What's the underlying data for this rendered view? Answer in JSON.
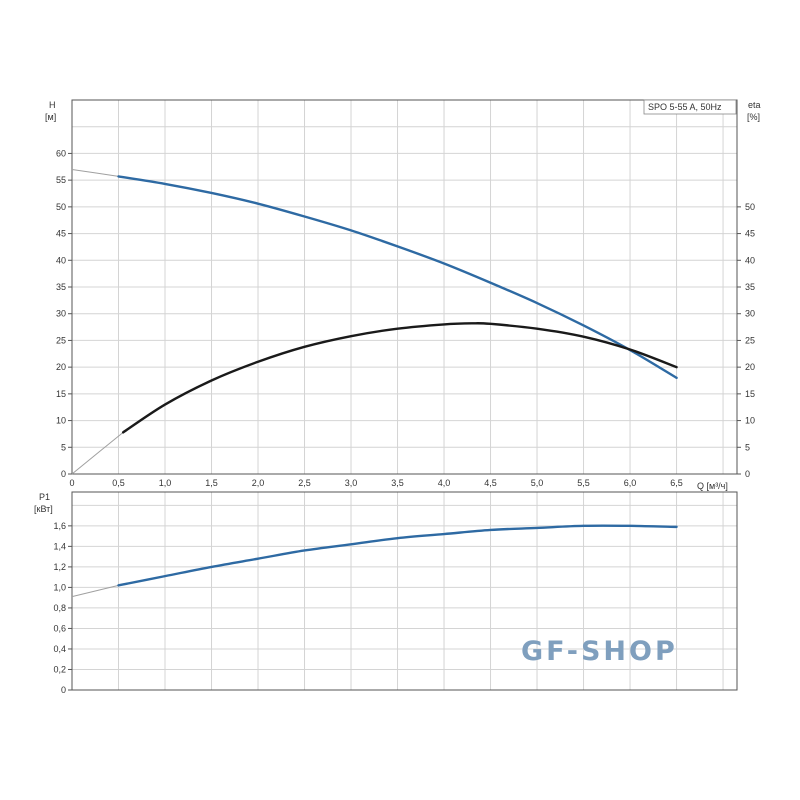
{
  "chart_data": [
    {
      "type": "line",
      "panel": "top",
      "legend_box": "SPO 5-55 A, 50Hz",
      "legend_placement": "top-right",
      "xlabel": "Q [м³/ч]",
      "ylabel": "H",
      "ylabel_unit": "[м]",
      "y2label": "eta",
      "y2label_unit": "[%]",
      "xlim": [
        0,
        7.15
      ],
      "ylim": [
        0,
        70
      ],
      "y2lim": [
        0,
        70
      ],
      "grid": true,
      "x_ticks": [
        "0",
        "0,5",
        "1,0",
        "1,5",
        "2,0",
        "2,5",
        "3,0",
        "3,5",
        "4,0",
        "4,5",
        "5,0",
        "5,5",
        "6,0",
        "6,5"
      ],
      "y_ticks": [
        "0",
        "5",
        "10",
        "15",
        "20",
        "25",
        "30",
        "35",
        "40",
        "45",
        "50",
        "55",
        "60"
      ],
      "y2_ticks": [
        "0",
        "5",
        "10",
        "15",
        "20",
        "25",
        "30",
        "35",
        "40",
        "45",
        "50"
      ],
      "series": [
        {
          "key": "H",
          "axis": "left",
          "color": "#2e6aa3",
          "x": [
            0,
            0.5,
            1,
            1.5,
            2,
            2.5,
            3,
            3.5,
            4,
            4.5,
            5,
            5.5,
            6,
            6.5
          ],
          "y": [
            57,
            55.7,
            54.3,
            52.6,
            50.6,
            48.2,
            45.6,
            42.6,
            39.4,
            35.8,
            32,
            27.8,
            23.2,
            18
          ]
        },
        {
          "key": "eta",
          "axis": "right",
          "color": "#1a1a1a",
          "x": [
            0,
            0.55,
            1,
            1.5,
            2,
            2.5,
            3,
            3.5,
            4,
            4.3,
            4.5,
            5,
            5.5,
            6,
            6.5
          ],
          "y": [
            0,
            7.8,
            13,
            17.5,
            21,
            23.8,
            25.8,
            27.2,
            28,
            28.2,
            28.1,
            27.2,
            25.7,
            23.3,
            20
          ]
        }
      ]
    },
    {
      "type": "line",
      "panel": "bottom",
      "ylabel": "P1",
      "ylabel_unit": "[кВт]",
      "xlim": [
        0,
        7.15
      ],
      "ylim": [
        0,
        1.93
      ],
      "grid": true,
      "y_ticks": [
        "0",
        "0,2",
        "0,4",
        "0,6",
        "0,8",
        "1,0",
        "1,2",
        "1,4",
        "1,6"
      ],
      "series": [
        {
          "key": "P1",
          "color": "#2e6aa3",
          "x": [
            0,
            0.5,
            1,
            1.5,
            2,
            2.5,
            3,
            3.5,
            4,
            4.5,
            5,
            5.5,
            6,
            6.5
          ],
          "y": [
            0.91,
            1.02,
            1.11,
            1.2,
            1.28,
            1.36,
            1.42,
            1.48,
            1.52,
            1.56,
            1.58,
            1.6,
            1.6,
            1.59
          ]
        }
      ]
    }
  ],
  "watermark": "GF-SHOP",
  "colors": {
    "grid": "#d4d4d4",
    "axis": "#555555",
    "extrapolated": "#a0a0a0"
  }
}
